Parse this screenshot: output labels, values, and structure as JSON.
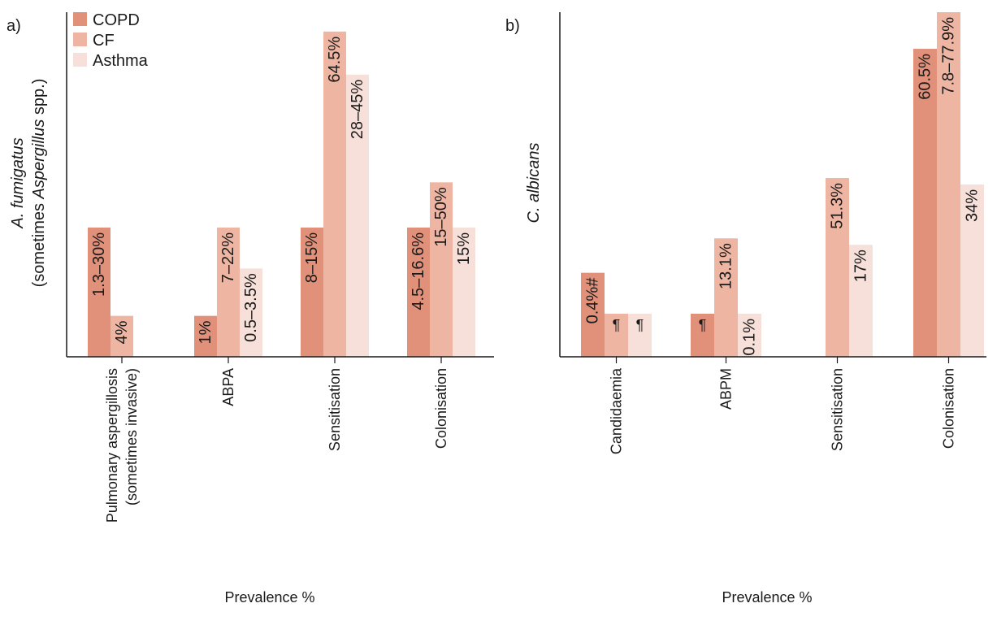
{
  "colors": {
    "COPD": "#e1907a",
    "CF": "#eeb5a2",
    "Asthma": "#f6e0d9"
  },
  "legend": [
    {
      "name": "COPD",
      "color": "#e1907a"
    },
    {
      "name": "CF",
      "color": "#eeb5a2"
    },
    {
      "name": "Asthma",
      "color": "#f6e0d9"
    }
  ],
  "chart_data": [
    {
      "type": "bar",
      "panel_label": "a)",
      "ylabel_italic": "A. fumigatus",
      "ylabel_line2_pre": "(sometimes ",
      "ylabel_line2_italic": "Aspergillus",
      "ylabel_line2_post": " spp.)",
      "xlabel": "Prevalence %",
      "legend_position": "top-left",
      "grid": false,
      "categories": [
        {
          "lines": [
            "Pulmonary aspergillosis",
            "(sometimes invasive)"
          ]
        },
        {
          "lines": [
            "ABPA"
          ]
        },
        {
          "lines": [
            "Sensitisation"
          ]
        },
        {
          "lines": [
            "Colonisation"
          ]
        }
      ],
      "series": [
        {
          "name": "COPD",
          "values": [
            30,
            9.5,
            30,
            30
          ],
          "labels": [
            "1.3–30%",
            "1%",
            "8–15%",
            "4.5–16.6%"
          ]
        },
        {
          "name": "CF",
          "values": [
            9.5,
            30,
            75.5,
            40.5
          ],
          "labels": [
            "4%",
            "7–22%",
            "64.5%",
            "15–50%"
          ]
        },
        {
          "name": "Asthma",
          "values": [
            0,
            20.5,
            65.5,
            30
          ],
          "labels": [
            "",
            "0.5–3.5%",
            "28–45%",
            "15%"
          ]
        }
      ],
      "ylim": [
        0,
        80
      ]
    },
    {
      "type": "bar",
      "panel_label": "b)",
      "ylabel_italic": "C. albicans",
      "xlabel": "Prevalence %",
      "grid": false,
      "categories": [
        {
          "lines": [
            "Candidaemia"
          ]
        },
        {
          "lines": [
            "ABPM"
          ]
        },
        {
          "lines": [
            "Sensitisation"
          ]
        },
        {
          "lines": [
            "Colonisation"
          ]
        }
      ],
      "series": [
        {
          "name": "COPD",
          "values": [
            19.5,
            10,
            0,
            71.5
          ],
          "labels": [
            "0.4%#",
            "¶",
            "",
            "60.5%"
          ]
        },
        {
          "name": "CF",
          "values": [
            10,
            27.5,
            41.5,
            80
          ],
          "labels": [
            "¶",
            "13.1%",
            "51.3%",
            "7.8–77.9%"
          ]
        },
        {
          "name": "Asthma",
          "values": [
            10,
            10,
            26,
            40
          ],
          "labels": [
            "¶",
            "0.1%",
            "17%",
            "34%"
          ]
        }
      ],
      "ylim": [
        0,
        80
      ]
    }
  ]
}
